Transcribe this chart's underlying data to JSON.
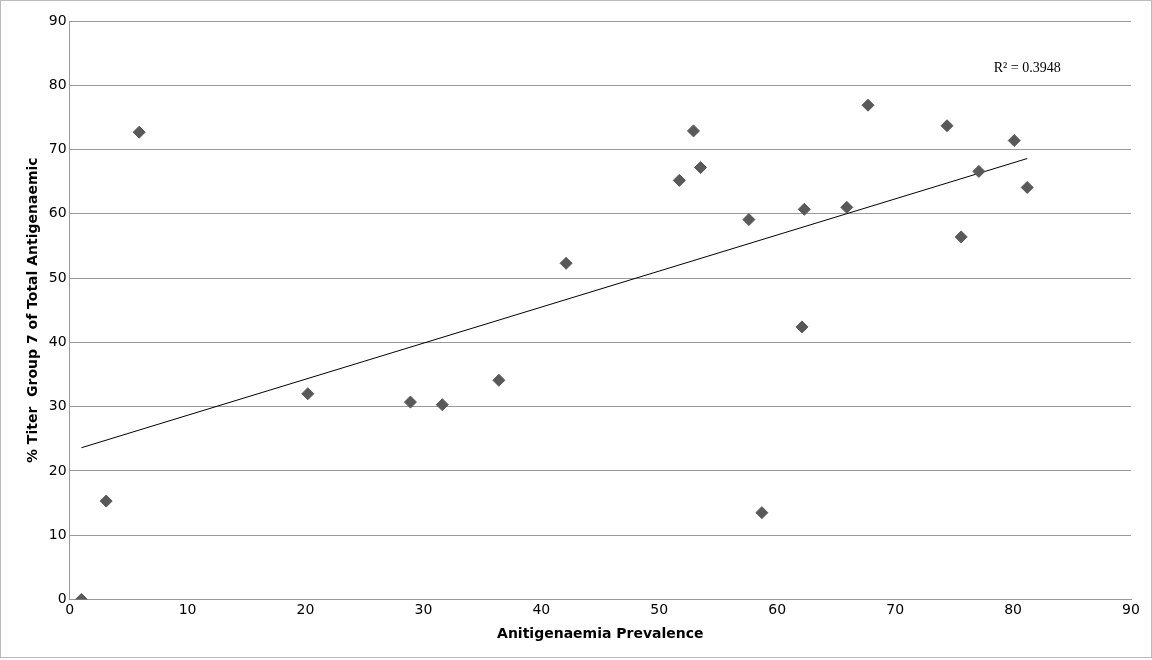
{
  "chart_data": {
    "type": "scatter",
    "xlabel": "Anitigenaemia Prevalence",
    "ylabel": "% Titer  Group 7 of Total Antigenaemic",
    "marker": "diamond",
    "grid": "y",
    "xlim": [
      0,
      90
    ],
    "xticks": [
      0,
      10,
      20,
      30,
      40,
      50,
      60,
      70,
      80,
      90
    ],
    "ylim": [
      0,
      90
    ],
    "yticks": [
      0,
      10,
      20,
      30,
      40,
      50,
      60,
      70,
      80,
      90
    ],
    "annotations": [
      "R² = 0.3948"
    ],
    "series": [
      {
        "color": "#595959",
        "x": [
          1,
          3.1,
          5.9,
          20.2,
          28.9,
          31.6,
          36.4,
          42.1,
          51.7,
          52.9,
          53.5,
          57.6,
          58.7,
          62.1,
          62.3,
          65.9,
          67.7,
          74.4,
          75.6,
          77.1,
          80.1,
          81.2
        ],
        "values": [
          0,
          15.3,
          72.7,
          32,
          30.7,
          30.3,
          34.1,
          52.3,
          65.2,
          72.9,
          67.2,
          59.1,
          13.5,
          42.4,
          60.7,
          61,
          76.9,
          73.7,
          56.4,
          66.6,
          71.4,
          64.1
        ]
      },
      {
        "type": "line",
        "color": "#000000",
        "marker": "none",
        "x": [
          1,
          81.2
        ],
        "values": [
          23.6,
          68.6
        ]
      }
    ]
  }
}
